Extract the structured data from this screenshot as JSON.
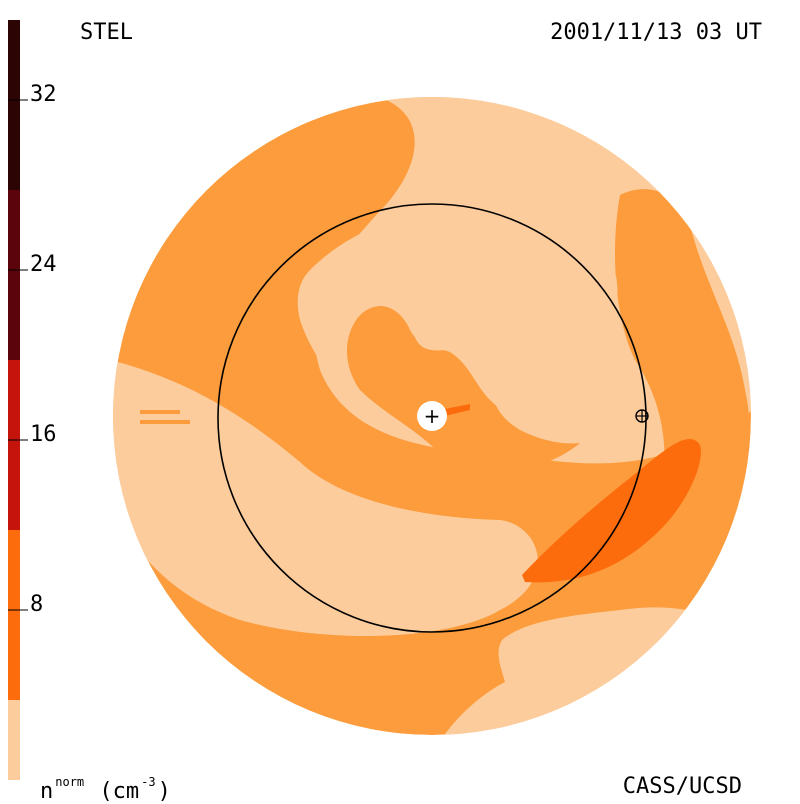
{
  "header": {
    "left_label": "STEL",
    "right_label": "2001/11/13 03 UT"
  },
  "footer": {
    "left_label_base": "n",
    "left_label_sup": "norm",
    "left_label_unit": "(cm",
    "left_label_unit_sup": "-3",
    "left_label_close": ")",
    "right_label": "CASS/UCSD"
  },
  "colorbar": {
    "ticks": [
      {
        "label": "32"
      },
      {
        "label": "24"
      },
      {
        "label": "16"
      },
      {
        "label": "8"
      }
    ],
    "colors": [
      "#fccc9c",
      "#fc9c3c",
      "#fc6c0c",
      "#e04c0c",
      "#c4140c",
      "#8c040c",
      "#5c040c",
      "#2c0404"
    ]
  },
  "diagram": {
    "palette": {
      "light": "#fccc9c",
      "medium": "#fc9c3c",
      "dark": "#fc6c0c",
      "line": "#000000",
      "sun": "#ffffff"
    },
    "center_symbol": "+",
    "earth_symbol": "⊕"
  }
}
